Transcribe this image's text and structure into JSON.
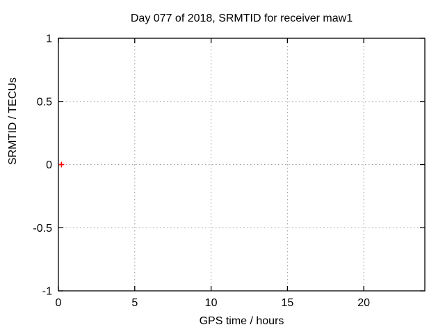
{
  "chart_data": {
    "type": "scatter",
    "title": "Day 077 of 2018, SRMTID for receiver maw1",
    "xlabel": "GPS time / hours",
    "ylabel": "SRMTID / TECUs",
    "xlim": [
      0,
      24
    ],
    "ylim": [
      -1,
      1
    ],
    "xticks": [
      {
        "value": 0,
        "label": "0"
      },
      {
        "value": 5,
        "label": "5"
      },
      {
        "value": 10,
        "label": "10"
      },
      {
        "value": 15,
        "label": "15"
      },
      {
        "value": 20,
        "label": "20"
      }
    ],
    "yticks": [
      {
        "value": -1,
        "label": "-1"
      },
      {
        "value": -0.5,
        "label": "-0.5"
      },
      {
        "value": 0,
        "label": "0"
      },
      {
        "value": 0.5,
        "label": "0.5"
      },
      {
        "value": 1,
        "label": "1"
      }
    ],
    "grid": {
      "show": true,
      "style": "dotted",
      "color": "#999999"
    },
    "legend_position": "none",
    "frame_color": "#000000",
    "background": "#ffffff",
    "series": [
      {
        "name": "SRMTID",
        "marker": "plus",
        "color": "#ff0000",
        "points": [
          {
            "x": 0.2,
            "y": 0.0
          }
        ]
      }
    ]
  }
}
